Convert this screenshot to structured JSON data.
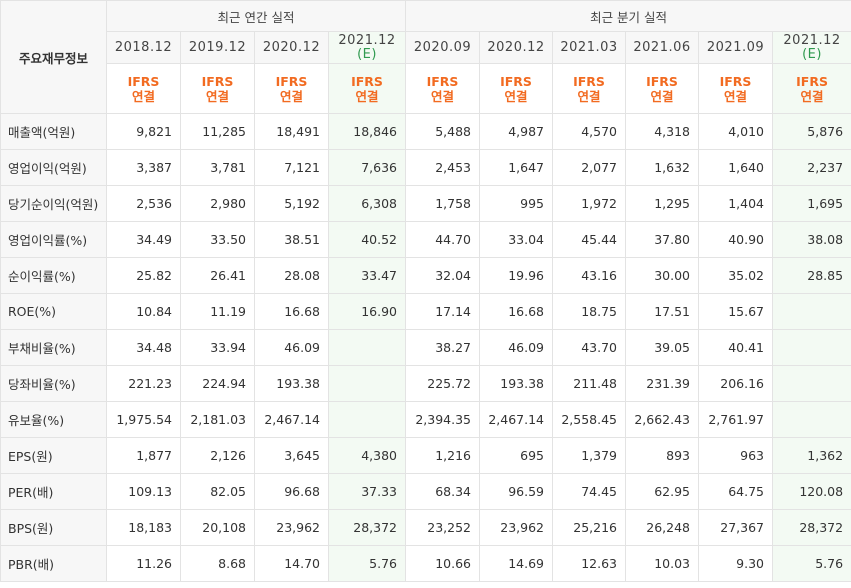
{
  "header": {
    "row_label": "주요재무정보",
    "annual_group": "최근 연간 실적",
    "quarter_group": "최근 분기 실적",
    "annual_periods": [
      {
        "label": "2018.12",
        "est": ""
      },
      {
        "label": "2019.12",
        "est": ""
      },
      {
        "label": "2020.12",
        "est": ""
      },
      {
        "label": "2021.12",
        "est": "(E)"
      }
    ],
    "quarter_periods": [
      {
        "label": "2020.09",
        "est": ""
      },
      {
        "label": "2020.12",
        "est": ""
      },
      {
        "label": "2021.03",
        "est": ""
      },
      {
        "label": "2021.06",
        "est": ""
      },
      {
        "label": "2021.09",
        "est": ""
      },
      {
        "label": "2021.12",
        "est": "(E)"
      }
    ],
    "ifrs_line1": "IFRS",
    "ifrs_line2": "연결"
  },
  "rows": [
    {
      "label": "매출액(억원)",
      "values": [
        "9,821",
        "11,285",
        "18,491",
        "18,846",
        "5,488",
        "4,987",
        "4,570",
        "4,318",
        "4,010",
        "5,876"
      ]
    },
    {
      "label": "영업이익(억원)",
      "values": [
        "3,387",
        "3,781",
        "7,121",
        "7,636",
        "2,453",
        "1,647",
        "2,077",
        "1,632",
        "1,640",
        "2,237"
      ]
    },
    {
      "label": "당기순이익(억원)",
      "values": [
        "2,536",
        "2,980",
        "5,192",
        "6,308",
        "1,758",
        "995",
        "1,972",
        "1,295",
        "1,404",
        "1,695"
      ]
    },
    {
      "label": "영업이익률(%)",
      "values": [
        "34.49",
        "33.50",
        "38.51",
        "40.52",
        "44.70",
        "33.04",
        "45.44",
        "37.80",
        "40.90",
        "38.08"
      ]
    },
    {
      "label": "순이익률(%)",
      "values": [
        "25.82",
        "26.41",
        "28.08",
        "33.47",
        "32.04",
        "19.96",
        "43.16",
        "30.00",
        "35.02",
        "28.85"
      ]
    },
    {
      "label": "ROE(%)",
      "values": [
        "10.84",
        "11.19",
        "16.68",
        "16.90",
        "17.14",
        "16.68",
        "18.75",
        "17.51",
        "15.67",
        ""
      ]
    },
    {
      "label": "부채비율(%)",
      "values": [
        "34.48",
        "33.94",
        "46.09",
        "",
        "38.27",
        "46.09",
        "43.70",
        "39.05",
        "40.41",
        ""
      ]
    },
    {
      "label": "당좌비율(%)",
      "values": [
        "221.23",
        "224.94",
        "193.38",
        "",
        "225.72",
        "193.38",
        "211.48",
        "231.39",
        "206.16",
        ""
      ]
    },
    {
      "label": "유보율(%)",
      "values": [
        "1,975.54",
        "2,181.03",
        "2,467.14",
        "",
        "2,394.35",
        "2,467.14",
        "2,558.45",
        "2,662.43",
        "2,761.97",
        ""
      ]
    },
    {
      "label": "EPS(원)",
      "values": [
        "1,877",
        "2,126",
        "3,645",
        "4,380",
        "1,216",
        "695",
        "1,379",
        "893",
        "963",
        "1,362"
      ]
    },
    {
      "label": "PER(배)",
      "values": [
        "109.13",
        "82.05",
        "96.68",
        "37.33",
        "68.34",
        "96.59",
        "74.45",
        "62.95",
        "64.75",
        "120.08"
      ]
    },
    {
      "label": "BPS(원)",
      "values": [
        "18,183",
        "20,108",
        "23,962",
        "28,372",
        "23,252",
        "23,962",
        "25,216",
        "26,248",
        "27,367",
        "28,372"
      ]
    },
    {
      "label": "PBR(배)",
      "values": [
        "11.26",
        "8.68",
        "14.70",
        "5.76",
        "10.66",
        "14.69",
        "12.63",
        "10.03",
        "9.30",
        "5.76"
      ]
    }
  ]
}
